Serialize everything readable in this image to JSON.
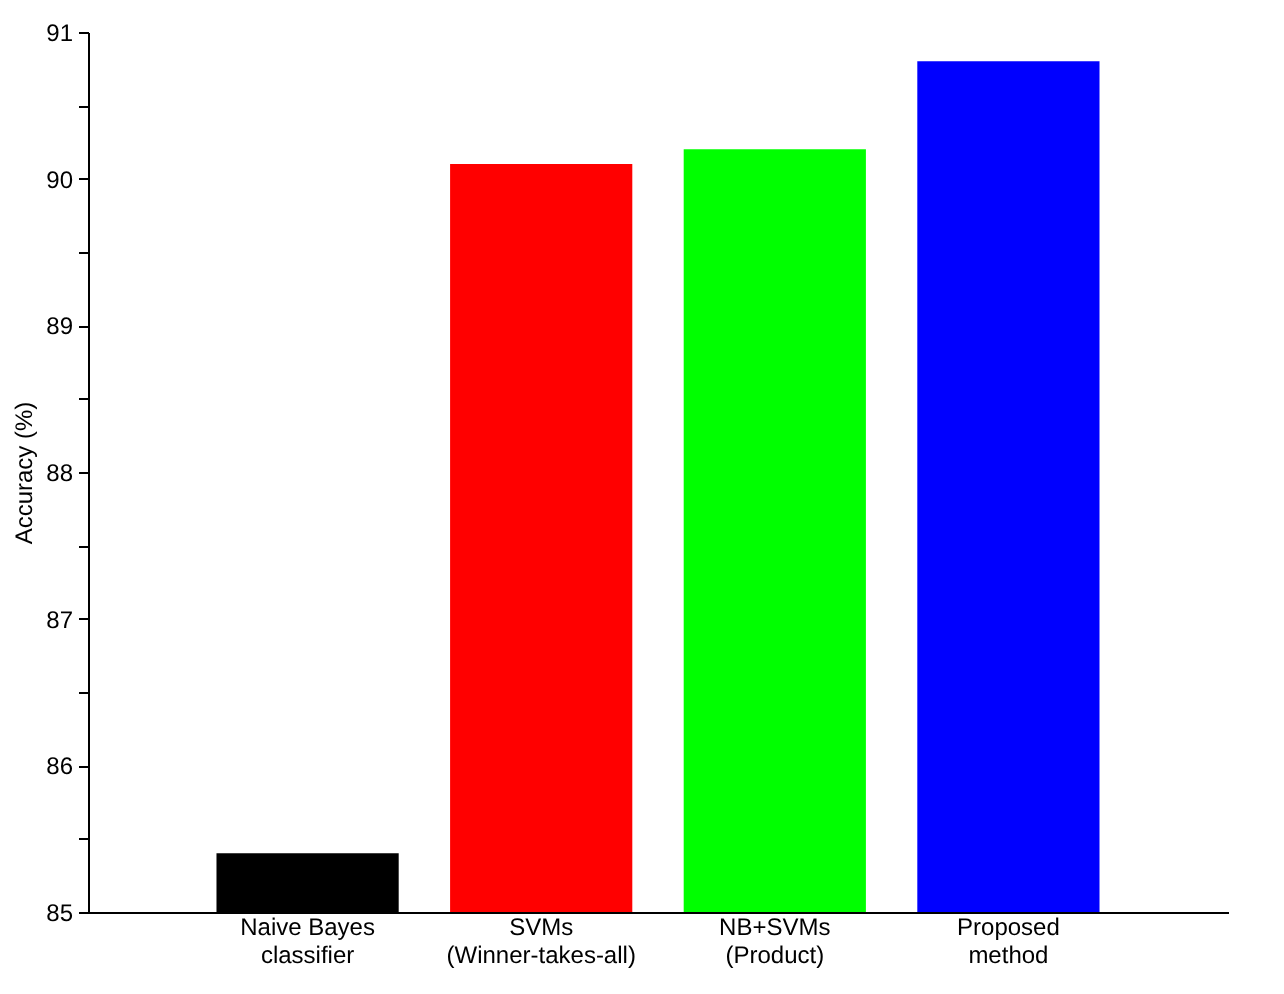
{
  "chart_data": {
    "type": "bar",
    "ylabel": "Accuracy (%)",
    "categories": [
      "Naive Bayes\nclassifier",
      "SVMs\n(Winner-takes-all)",
      "NB+SVMs\n(Product)",
      "Proposed\nmethod"
    ],
    "values": [
      85.4,
      90.1,
      90.2,
      90.8
    ],
    "colors": [
      "#000000",
      "#ff0000",
      "#00ff00",
      "#0000ff"
    ],
    "ylim": [
      85,
      91
    ],
    "yticks": [
      85,
      {
        "value": 85.5,
        "label": null
      },
      86,
      {
        "value": 86.5,
        "label": null
      },
      87,
      {
        "value": 87.5,
        "label": null
      },
      88,
      {
        "value": 88.5,
        "label": null
      },
      89,
      {
        "value": 89.5,
        "label": null
      },
      90,
      {
        "value": 90.5,
        "label": null
      },
      91
    ],
    "grid": false
  }
}
